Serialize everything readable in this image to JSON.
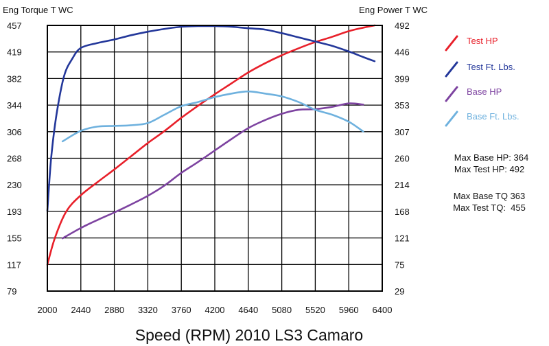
{
  "chart_data": {
    "type": "line",
    "title": "Speed (RPM) 2010 LS3 Camaro",
    "xlabel": "Speed (RPM) 2010 LS3 Camaro",
    "ylabel_left": "Eng Torque T WC",
    "ylabel_right": "Eng Power T WC",
    "x_ticks": [
      "2000",
      "2440",
      "2880",
      "3320",
      "3760",
      "4200",
      "4640",
      "5080",
      "5520",
      "5960",
      "6400"
    ],
    "y_left_ticks": [
      "457",
      "419",
      "382",
      "344",
      "306",
      "268",
      "230",
      "193",
      "155",
      "117",
      "79"
    ],
    "y_right_ticks": [
      "492",
      "446",
      "399",
      "353",
      "307",
      "260",
      "214",
      "168",
      "121",
      "75",
      "29"
    ],
    "xlim": [
      2000,
      6400
    ],
    "ylim_left": [
      79,
      457
    ],
    "ylim_right": [
      29,
      492
    ],
    "grid": true,
    "legend_position": "right",
    "series": [
      {
        "name": "Test HP",
        "axis": "right",
        "color": "#e8202a",
        "x": [
          2000,
          2100,
          2250,
          2440,
          2660,
          2880,
          3100,
          3320,
          3540,
          3760,
          3980,
          4200,
          4420,
          4640,
          4860,
          5080,
          5300,
          5520,
          5740,
          5960,
          6150,
          6300
        ],
        "values": [
          75,
          122,
          168,
          196,
          219,
          241,
          264,
          287,
          308,
          331,
          352,
          372,
          391,
          410,
          426,
          440,
          452,
          463,
          472,
          482,
          488,
          492
        ]
      },
      {
        "name": "Test Ft. Lbs.",
        "axis": "left",
        "color": "#23379a",
        "x": [
          2000,
          2050,
          2120,
          2220,
          2330,
          2440,
          2660,
          2880,
          3100,
          3320,
          3540,
          3760,
          3980,
          4200,
          4420,
          4640,
          4860,
          5080,
          5300,
          5520,
          5740,
          5960,
          6150,
          6300
        ],
        "values": [
          193,
          268,
          330,
          385,
          410,
          425,
          432,
          437,
          443,
          448,
          452,
          455,
          456,
          456,
          455,
          453,
          451,
          446,
          440,
          434,
          428,
          420,
          412,
          406
        ]
      },
      {
        "name": "Base HP",
        "axis": "right",
        "color": "#7d43a0",
        "x": [
          2200,
          2440,
          2660,
          2880,
          3100,
          3320,
          3540,
          3760,
          3980,
          4200,
          4420,
          4640,
          4860,
          5080,
          5300,
          5520,
          5740,
          5960,
          6150
        ],
        "values": [
          121,
          139,
          153,
          166,
          180,
          195,
          213,
          235,
          254,
          274,
          294,
          313,
          327,
          338,
          345,
          346,
          350,
          356,
          354
        ]
      },
      {
        "name": "Base Ft. Lbs.",
        "axis": "left",
        "color": "#6eb1de",
        "x": [
          2200,
          2440,
          2660,
          2880,
          3100,
          3320,
          3540,
          3760,
          3980,
          4200,
          4420,
          4640,
          4860,
          5080,
          5300,
          5520,
          5740,
          5960,
          6150
        ],
        "values": [
          292,
          307,
          313,
          314,
          315,
          318,
          330,
          342,
          348,
          355,
          360,
          363,
          360,
          356,
          348,
          337,
          330,
          320,
          306
        ]
      }
    ],
    "annotations": [
      "Max Base HP: 364",
      "Max Test HP: 492",
      "Max Base TQ 363",
      "Max Test TQ:  455"
    ]
  }
}
